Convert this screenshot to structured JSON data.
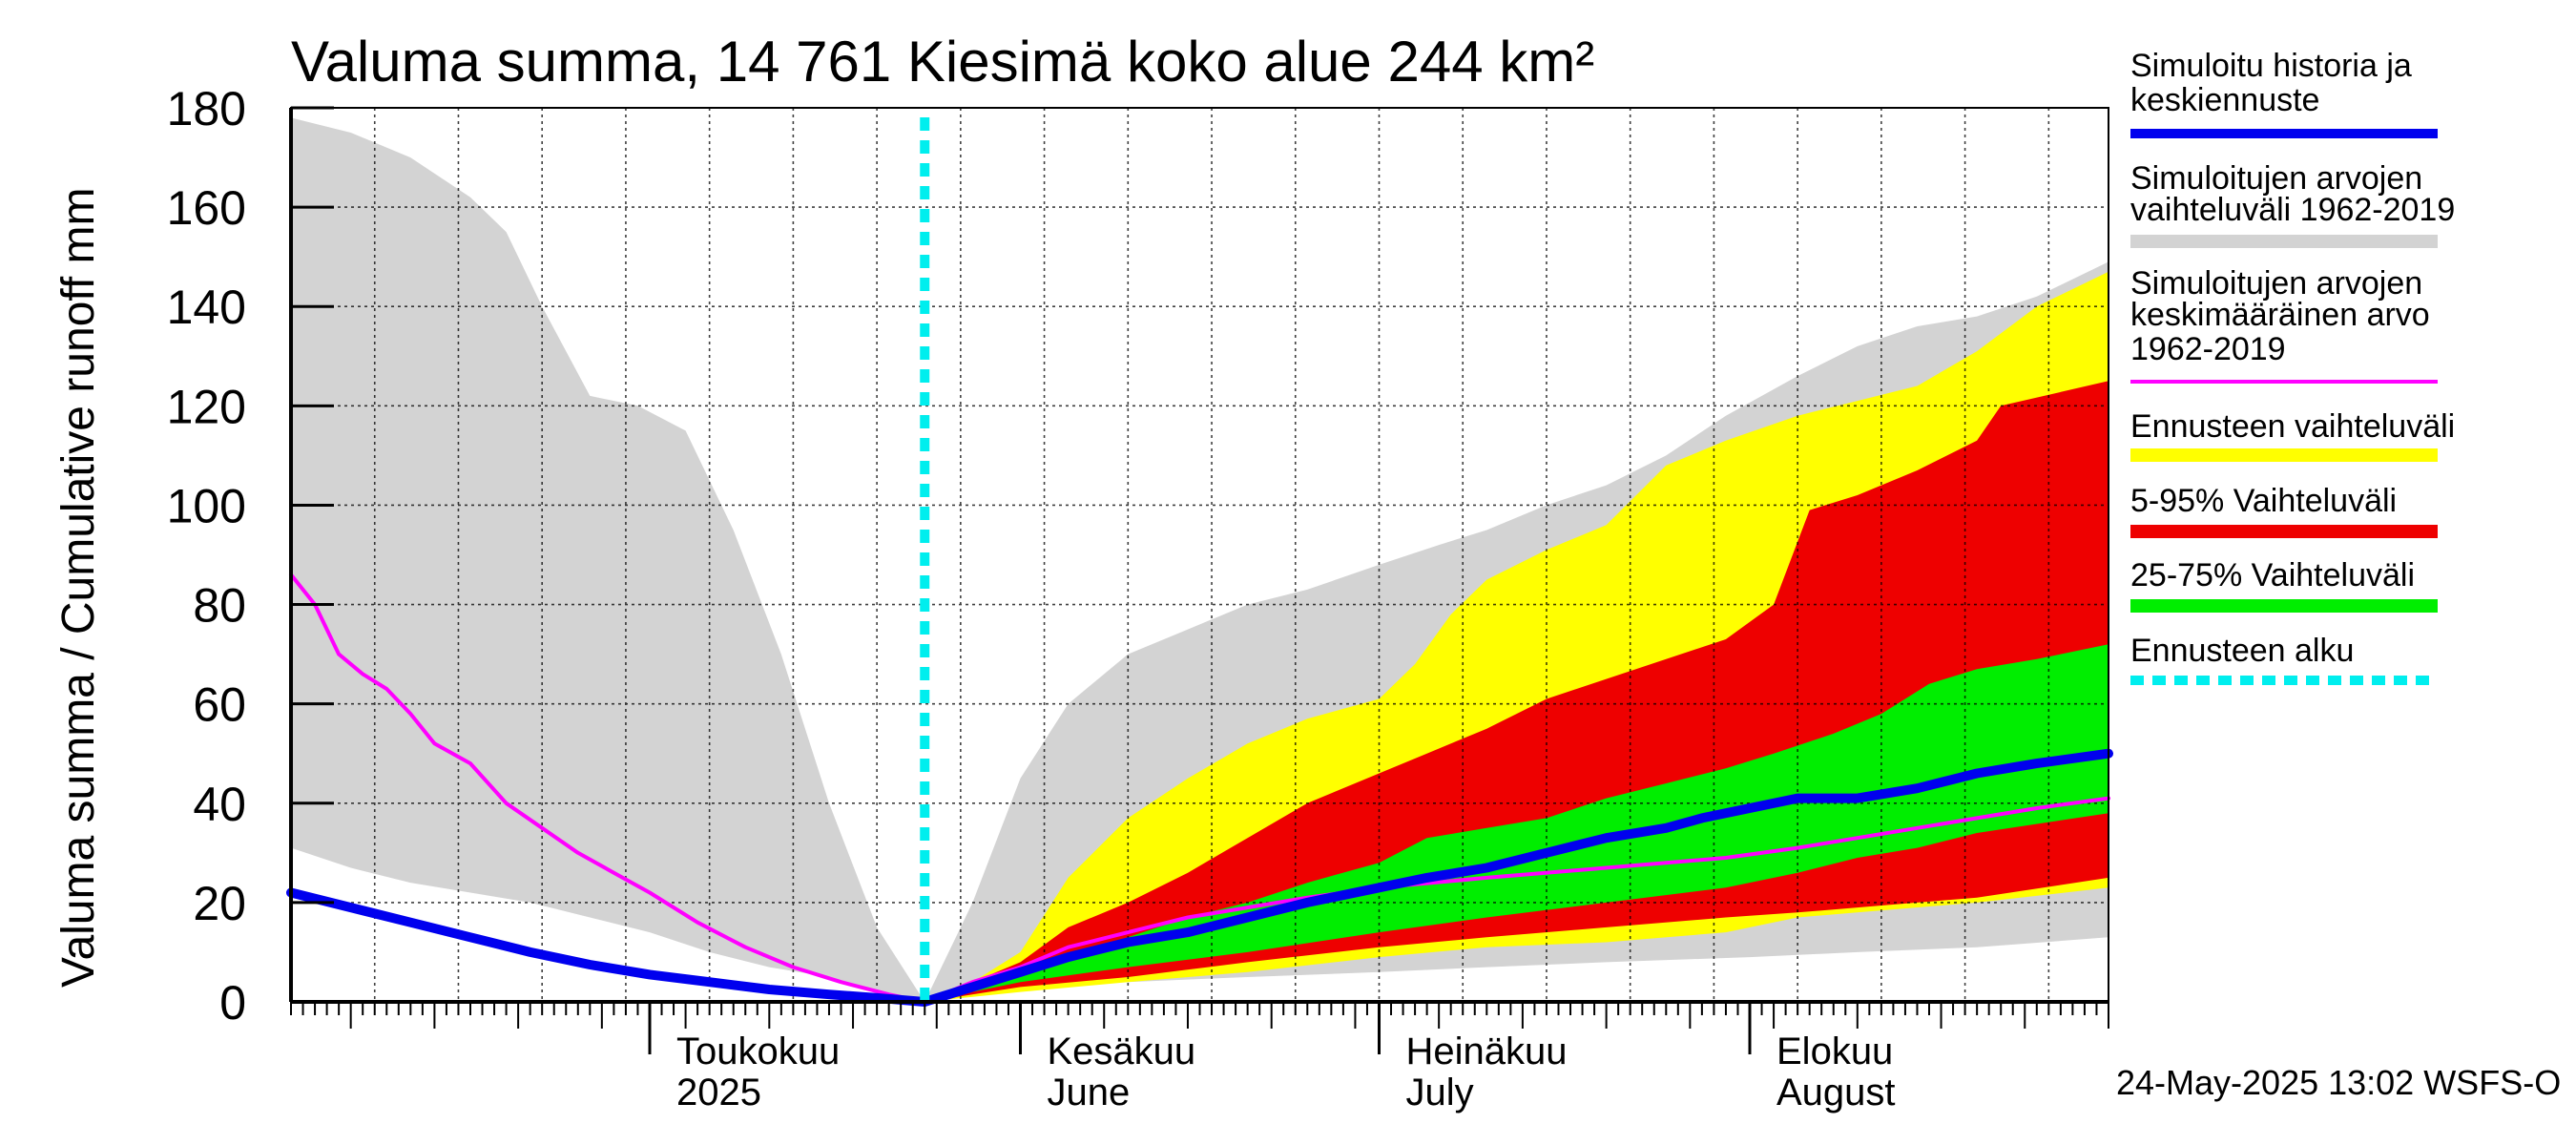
{
  "chart_data": {
    "type": "area",
    "title": "Valuma summa, 14 761 Kiesimä koko alue 244 km²",
    "ylabel": "Valuma summa / Cumulative runoff    mm",
    "ylim": [
      0,
      180
    ],
    "yticks": [
      0,
      20,
      40,
      60,
      80,
      100,
      120,
      140,
      160,
      180
    ],
    "xlim": [
      "2025-04-01",
      "2025-08-31"
    ],
    "grid": true,
    "month_labels": [
      {
        "date": "2025-05-01",
        "fi": "Toukokuu",
        "en": "2025"
      },
      {
        "date": "2025-06-01",
        "fi": "Kesäkuu",
        "en": "June"
      },
      {
        "date": "2025-07-01",
        "fi": "Heinäkuu",
        "en": "July"
      },
      {
        "date": "2025-08-01",
        "fi": "Elokuu",
        "en": "August"
      }
    ],
    "forecast_start": "2025-05-24",
    "legend_position": "right",
    "legend": [
      {
        "key": "sim_history",
        "label": "Simuloitu historia ja\nkeskiennuste",
        "color": "#0000ee",
        "style": "line"
      },
      {
        "key": "sim_range",
        "label": "Simuloitujen arvojen\nvaihteluväli 1962-2019",
        "color": "#d3d3d3",
        "style": "band"
      },
      {
        "key": "sim_mean",
        "label": "Simuloitujen arvojen\nkeskimääräinen arvo\n   1962-2019",
        "color": "#ff00ff",
        "style": "thin"
      },
      {
        "key": "fc_range",
        "label": "Ennusteen vaihteluväli",
        "color": "#ffff00",
        "style": "band"
      },
      {
        "key": "fc_5_95",
        "label": "5-95% Vaihteluväli",
        "color": "#ee0000",
        "style": "band"
      },
      {
        "key": "fc_25_75",
        "label": "25-75% Vaihteluväli",
        "color": "#00ee00",
        "style": "band"
      },
      {
        "key": "fc_start",
        "label": "Ennusteen alku",
        "color": "#00eeee",
        "style": "dashed"
      }
    ],
    "series": {
      "sim_range": {
        "upper": [
          [
            "2025-04-01",
            178
          ],
          [
            "2025-04-06",
            175
          ],
          [
            "2025-04-11",
            170
          ],
          [
            "2025-04-16",
            162
          ],
          [
            "2025-04-19",
            155
          ],
          [
            "2025-04-22",
            140
          ],
          [
            "2025-04-26",
            122
          ],
          [
            "2025-04-30",
            120
          ],
          [
            "2025-05-04",
            115
          ],
          [
            "2025-05-08",
            95
          ],
          [
            "2025-05-12",
            70
          ],
          [
            "2025-05-16",
            40
          ],
          [
            "2025-05-20",
            15
          ],
          [
            "2025-05-24",
            0
          ],
          [
            "2025-05-28",
            20
          ],
          [
            "2025-06-01",
            45
          ],
          [
            "2025-06-05",
            60
          ],
          [
            "2025-06-10",
            70
          ],
          [
            "2025-06-15",
            75
          ],
          [
            "2025-06-20",
            80
          ],
          [
            "2025-06-25",
            83
          ],
          [
            "2025-07-01",
            88
          ],
          [
            "2025-07-06",
            92
          ],
          [
            "2025-07-10",
            95
          ],
          [
            "2025-07-15",
            100
          ],
          [
            "2025-07-20",
            104
          ],
          [
            "2025-07-25",
            110
          ],
          [
            "2025-07-30",
            118
          ],
          [
            "2025-08-05",
            126
          ],
          [
            "2025-08-10",
            132
          ],
          [
            "2025-08-15",
            136
          ],
          [
            "2025-08-20",
            138
          ],
          [
            "2025-08-25",
            142
          ],
          [
            "2025-08-31",
            149
          ]
        ],
        "lower": [
          [
            "2025-04-01",
            31
          ],
          [
            "2025-04-06",
            27
          ],
          [
            "2025-04-11",
            24
          ],
          [
            "2025-04-16",
            22
          ],
          [
            "2025-04-21",
            20
          ],
          [
            "2025-04-26",
            17
          ],
          [
            "2025-05-01",
            14
          ],
          [
            "2025-05-06",
            10
          ],
          [
            "2025-05-11",
            7
          ],
          [
            "2025-05-16",
            5
          ],
          [
            "2025-05-20",
            2
          ],
          [
            "2025-05-24",
            0
          ],
          [
            "2025-06-01",
            3
          ],
          [
            "2025-06-10",
            4
          ],
          [
            "2025-06-20",
            5
          ],
          [
            "2025-07-01",
            6
          ],
          [
            "2025-07-10",
            7
          ],
          [
            "2025-07-20",
            8
          ],
          [
            "2025-08-01",
            9
          ],
          [
            "2025-08-10",
            10
          ],
          [
            "2025-08-20",
            11
          ],
          [
            "2025-08-31",
            13
          ]
        ]
      },
      "fc_range": {
        "upper": [
          [
            "2025-05-24",
            0
          ],
          [
            "2025-05-28",
            4
          ],
          [
            "2025-06-01",
            10
          ],
          [
            "2025-06-05",
            25
          ],
          [
            "2025-06-10",
            37
          ],
          [
            "2025-06-15",
            45
          ],
          [
            "2025-06-20",
            52
          ],
          [
            "2025-06-25",
            57
          ],
          [
            "2025-07-01",
            61
          ],
          [
            "2025-07-04",
            68
          ],
          [
            "2025-07-07",
            78
          ],
          [
            "2025-07-10",
            85
          ],
          [
            "2025-07-15",
            91
          ],
          [
            "2025-07-20",
            96
          ],
          [
            "2025-07-25",
            108
          ],
          [
            "2025-07-30",
            113
          ],
          [
            "2025-08-05",
            118
          ],
          [
            "2025-08-10",
            121
          ],
          [
            "2025-08-15",
            124
          ],
          [
            "2025-08-20",
            131
          ],
          [
            "2025-08-25",
            140
          ],
          [
            "2025-08-31",
            147
          ]
        ],
        "lower": [
          [
            "2025-05-24",
            0
          ],
          [
            "2025-06-01",
            2
          ],
          [
            "2025-06-10",
            4
          ],
          [
            "2025-06-20",
            6
          ],
          [
            "2025-07-01",
            9
          ],
          [
            "2025-07-10",
            11
          ],
          [
            "2025-07-20",
            12
          ],
          [
            "2025-07-30",
            14
          ],
          [
            "2025-08-05",
            17
          ],
          [
            "2025-08-10",
            18
          ],
          [
            "2025-08-20",
            20
          ],
          [
            "2025-08-31",
            23
          ]
        ]
      },
      "fc_5_95": {
        "upper": [
          [
            "2025-05-24",
            0
          ],
          [
            "2025-06-01",
            8
          ],
          [
            "2025-06-05",
            15
          ],
          [
            "2025-06-10",
            20
          ],
          [
            "2025-06-15",
            26
          ],
          [
            "2025-06-20",
            33
          ],
          [
            "2025-06-25",
            40
          ],
          [
            "2025-07-01",
            46
          ],
          [
            "2025-07-05",
            50
          ],
          [
            "2025-07-10",
            55
          ],
          [
            "2025-07-15",
            61
          ],
          [
            "2025-07-20",
            65
          ],
          [
            "2025-07-25",
            69
          ],
          [
            "2025-07-30",
            73
          ],
          [
            "2025-08-03",
            80
          ],
          [
            "2025-08-06",
            99
          ],
          [
            "2025-08-10",
            102
          ],
          [
            "2025-08-15",
            107
          ],
          [
            "2025-08-20",
            113
          ],
          [
            "2025-08-22",
            120
          ],
          [
            "2025-08-31",
            125
          ]
        ],
        "lower": [
          [
            "2025-05-24",
            0
          ],
          [
            "2025-06-01",
            3
          ],
          [
            "2025-06-10",
            5
          ],
          [
            "2025-06-20",
            8
          ],
          [
            "2025-07-01",
            11
          ],
          [
            "2025-07-10",
            13
          ],
          [
            "2025-07-20",
            15
          ],
          [
            "2025-07-30",
            17
          ],
          [
            "2025-08-05",
            18
          ],
          [
            "2025-08-10",
            19
          ],
          [
            "2025-08-15",
            20
          ],
          [
            "2025-08-20",
            21
          ],
          [
            "2025-08-31",
            25
          ]
        ]
      },
      "fc_25_75": {
        "upper": [
          [
            "2025-05-24",
            0
          ],
          [
            "2025-06-01",
            6
          ],
          [
            "2025-06-10",
            13
          ],
          [
            "2025-06-15",
            17
          ],
          [
            "2025-06-20",
            20
          ],
          [
            "2025-06-25",
            24
          ],
          [
            "2025-07-01",
            28
          ],
          [
            "2025-07-05",
            33
          ],
          [
            "2025-07-10",
            35
          ],
          [
            "2025-07-15",
            37
          ],
          [
            "2025-07-20",
            41
          ],
          [
            "2025-07-25",
            44
          ],
          [
            "2025-07-30",
            47
          ],
          [
            "2025-08-03",
            50
          ],
          [
            "2025-08-08",
            54
          ],
          [
            "2025-08-12",
            58
          ],
          [
            "2025-08-16",
            64
          ],
          [
            "2025-08-20",
            67
          ],
          [
            "2025-08-25",
            69
          ],
          [
            "2025-08-31",
            72
          ]
        ],
        "lower": [
          [
            "2025-05-24",
            0
          ],
          [
            "2025-06-01",
            4
          ],
          [
            "2025-06-10",
            7
          ],
          [
            "2025-06-20",
            10
          ],
          [
            "2025-07-01",
            14
          ],
          [
            "2025-07-10",
            17
          ],
          [
            "2025-07-20",
            20
          ],
          [
            "2025-07-30",
            23
          ],
          [
            "2025-08-05",
            26
          ],
          [
            "2025-08-10",
            29
          ],
          [
            "2025-08-15",
            31
          ],
          [
            "2025-08-20",
            34
          ],
          [
            "2025-08-31",
            38
          ]
        ]
      },
      "sim_history": [
        [
          "2025-04-01",
          22
        ],
        [
          "2025-04-06",
          19
        ],
        [
          "2025-04-11",
          16
        ],
        [
          "2025-04-16",
          13
        ],
        [
          "2025-04-21",
          10
        ],
        [
          "2025-04-26",
          7.5
        ],
        [
          "2025-05-01",
          5.5
        ],
        [
          "2025-05-06",
          4
        ],
        [
          "2025-05-11",
          2.5
        ],
        [
          "2025-05-16",
          1.5
        ],
        [
          "2025-05-20",
          0.8
        ],
        [
          "2025-05-24",
          0
        ],
        [
          "2025-05-28",
          3
        ],
        [
          "2025-06-01",
          6
        ],
        [
          "2025-06-05",
          9
        ],
        [
          "2025-06-10",
          12
        ],
        [
          "2025-06-15",
          14
        ],
        [
          "2025-06-20",
          17
        ],
        [
          "2025-06-25",
          20
        ],
        [
          "2025-07-01",
          23
        ],
        [
          "2025-07-05",
          25
        ],
        [
          "2025-07-10",
          27
        ],
        [
          "2025-07-15",
          30
        ],
        [
          "2025-07-20",
          33
        ],
        [
          "2025-07-25",
          35
        ],
        [
          "2025-07-28",
          37
        ],
        [
          "2025-08-01",
          39
        ],
        [
          "2025-08-05",
          41
        ],
        [
          "2025-08-10",
          41
        ],
        [
          "2025-08-15",
          43
        ],
        [
          "2025-08-20",
          46
        ],
        [
          "2025-08-25",
          48
        ],
        [
          "2025-08-31",
          50
        ]
      ],
      "sim_mean": [
        [
          "2025-04-01",
          86
        ],
        [
          "2025-04-03",
          80
        ],
        [
          "2025-04-05",
          70
        ],
        [
          "2025-04-07",
          66
        ],
        [
          "2025-04-09",
          63
        ],
        [
          "2025-04-11",
          58
        ],
        [
          "2025-04-13",
          52
        ],
        [
          "2025-04-16",
          48
        ],
        [
          "2025-04-19",
          40
        ],
        [
          "2025-04-22",
          35
        ],
        [
          "2025-04-25",
          30
        ],
        [
          "2025-04-28",
          26
        ],
        [
          "2025-05-01",
          22
        ],
        [
          "2025-05-05",
          16
        ],
        [
          "2025-05-09",
          11
        ],
        [
          "2025-05-13",
          7
        ],
        [
          "2025-05-17",
          4
        ],
        [
          "2025-05-21",
          1.5
        ],
        [
          "2025-05-24",
          0
        ],
        [
          "2025-05-28",
          4
        ],
        [
          "2025-06-01",
          7
        ],
        [
          "2025-06-05",
          11
        ],
        [
          "2025-06-10",
          14
        ],
        [
          "2025-06-15",
          17
        ],
        [
          "2025-06-20",
          19
        ],
        [
          "2025-06-25",
          21
        ],
        [
          "2025-07-01",
          23
        ],
        [
          "2025-07-10",
          25
        ],
        [
          "2025-07-20",
          27
        ],
        [
          "2025-07-30",
          29
        ],
        [
          "2025-08-05",
          31
        ],
        [
          "2025-08-10",
          33
        ],
        [
          "2025-08-15",
          35
        ],
        [
          "2025-08-20",
          37
        ],
        [
          "2025-08-25",
          39
        ],
        [
          "2025-08-31",
          41
        ]
      ]
    }
  },
  "footer_text": "24-May-2025 13:02 WSFS-O"
}
